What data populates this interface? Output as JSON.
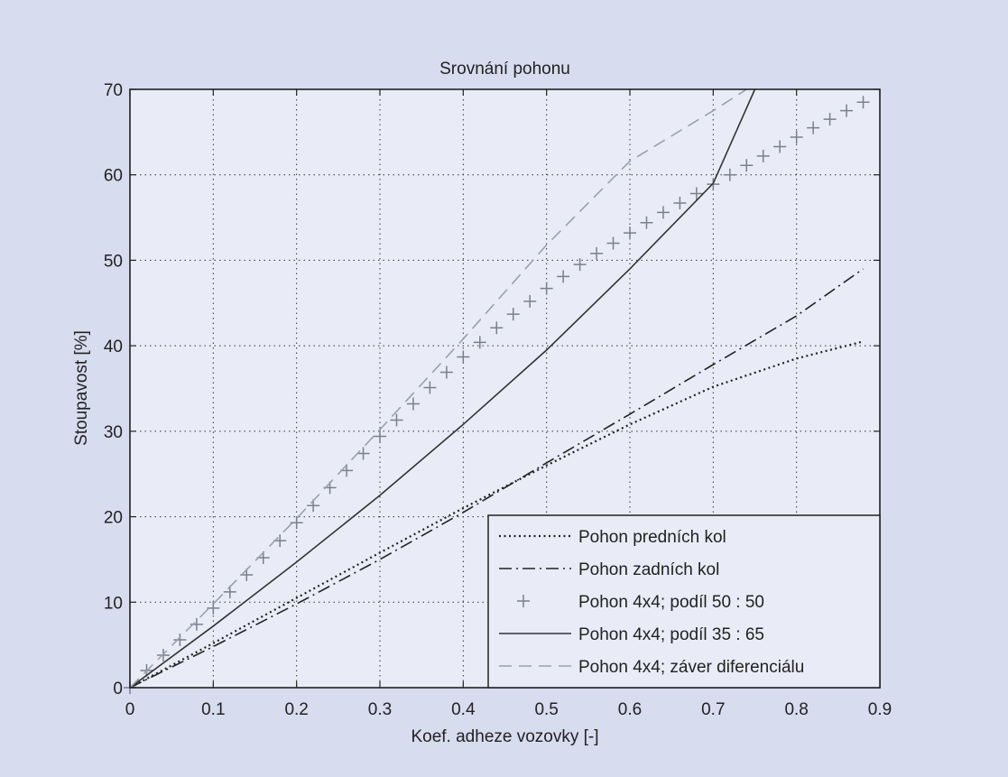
{
  "chart_data": {
    "type": "line",
    "title": "Srovnání pohonu",
    "xlabel": "Koef. adheze vozovky [-]",
    "ylabel": "Stoupavost [%]",
    "xlim": [
      0,
      0.9
    ],
    "ylim": [
      0,
      70
    ],
    "xticks": [
      0,
      0.1,
      0.2,
      0.3,
      0.4,
      0.5,
      0.6,
      0.7,
      0.8,
      0.9
    ],
    "xtick_labels": [
      "0",
      "0.1",
      "0.2",
      "0.3",
      "0.4",
      "0.5",
      "0.6",
      "0.7",
      "0.8",
      "0.9"
    ],
    "yticks": [
      0,
      10,
      20,
      30,
      40,
      50,
      60,
      70
    ],
    "ytick_labels": [
      "0",
      "10",
      "20",
      "30",
      "40",
      "50",
      "60",
      "70"
    ],
    "grid": true,
    "legend_position": "bottom-right",
    "series": [
      {
        "name": "Pohon predních kol",
        "style": "dotted",
        "color": "#222222",
        "x": [
          0,
          0.1,
          0.2,
          0.3,
          0.4,
          0.5,
          0.6,
          0.7,
          0.8,
          0.88
        ],
        "y": [
          0,
          5.2,
          10.5,
          15.8,
          21,
          26,
          30.8,
          35.2,
          38.5,
          40.5
        ]
      },
      {
        "name": "Pohon zadních kol",
        "style": "dashdot",
        "color": "#222222",
        "x": [
          0,
          0.1,
          0.2,
          0.3,
          0.4,
          0.5,
          0.6,
          0.7,
          0.8,
          0.88
        ],
        "y": [
          0,
          4.8,
          9.8,
          15,
          20.5,
          26.3,
          32,
          37.8,
          43.5,
          49
        ]
      },
      {
        "name": "Pohon 4x4; podíl 50 : 50",
        "style": "plus",
        "color": "#7a7f8c",
        "x": [
          0,
          0.02,
          0.04,
          0.06,
          0.08,
          0.1,
          0.12,
          0.14,
          0.16,
          0.18,
          0.2,
          0.22,
          0.24,
          0.26,
          0.28,
          0.3,
          0.32,
          0.34,
          0.36,
          0.38,
          0.4,
          0.42,
          0.44,
          0.46,
          0.48,
          0.5,
          0.52,
          0.54,
          0.56,
          0.58,
          0.6,
          0.62,
          0.64,
          0.66,
          0.68,
          0.7,
          0.72,
          0.74,
          0.76,
          0.78,
          0.8,
          0.82,
          0.84,
          0.86,
          0.88
        ],
        "y": [
          0,
          2,
          3.8,
          5.6,
          7.4,
          9.3,
          11.2,
          13.2,
          15.2,
          17.2,
          19.3,
          21.3,
          23.4,
          25.4,
          27.4,
          29.4,
          31.3,
          33.2,
          35.1,
          36.9,
          38.7,
          40.4,
          42.1,
          43.7,
          45.2,
          46.7,
          48.1,
          49.5,
          50.8,
          52,
          53.2,
          54.4,
          55.6,
          56.7,
          57.8,
          58.9,
          60,
          61.1,
          62.2,
          63.3,
          64.4,
          65.5,
          66.5,
          67.5,
          68.5
        ]
      },
      {
        "name": "Pohon 4x4; podíl 35 : 65",
        "style": "solid",
        "color": "#333333",
        "x": [
          0,
          0.1,
          0.2,
          0.3,
          0.4,
          0.5,
          0.6,
          0.7,
          0.75
        ],
        "y": [
          0,
          7.2,
          14.7,
          22.5,
          30.8,
          39.5,
          49,
          59,
          70
        ]
      },
      {
        "name": "Pohon 4x4; záver diferenciálu",
        "style": "dashed",
        "color": "#9aa0ae",
        "x": [
          0,
          0.1,
          0.2,
          0.3,
          0.4,
          0.5,
          0.6,
          0.7,
          0.74
        ],
        "y": [
          0,
          9.8,
          19.8,
          30.2,
          40.8,
          51.8,
          61.6,
          67.5,
          70
        ]
      }
    ]
  }
}
